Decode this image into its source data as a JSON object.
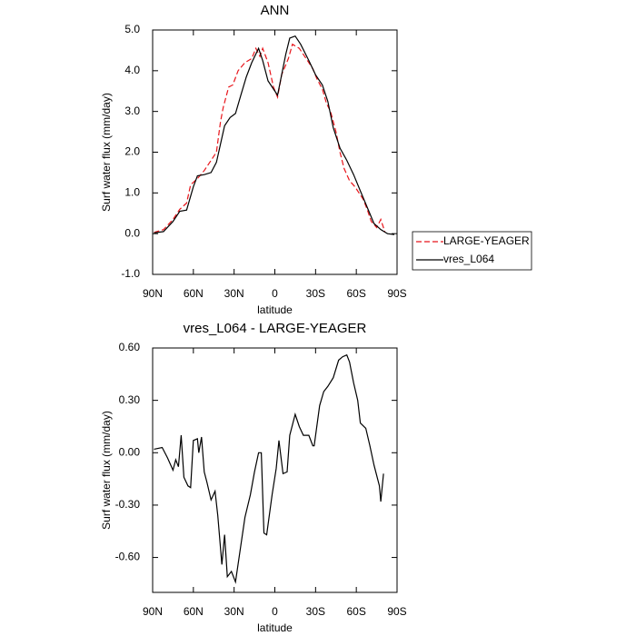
{
  "chart_data": [
    {
      "type": "line",
      "title": "ANN",
      "xlabel": "latitude",
      "ylabel": "Surf water flux (mm/day)",
      "xlim": [
        90,
        -90
      ],
      "xticks": [
        {
          "value": 90,
          "label": "90N"
        },
        {
          "value": 60,
          "label": "60N"
        },
        {
          "value": 30,
          "label": "30N"
        },
        0,
        {
          "value": -30,
          "label": "30S"
        },
        {
          "value": -60,
          "label": "60S"
        },
        {
          "value": -90,
          "label": "90S"
        }
      ],
      "ylim": [
        -1,
        5
      ],
      "yticks": [
        {
          "value": -1,
          "label": "-1.0"
        },
        {
          "value": 0,
          "label": "0.0"
        },
        {
          "value": 1,
          "label": "1.0"
        },
        {
          "value": 2,
          "label": "2.0"
        },
        {
          "value": 3,
          "label": "3.0"
        },
        {
          "value": 4,
          "label": "4.0"
        },
        {
          "value": 5,
          "label": "5.0"
        }
      ],
      "legend": "right",
      "series": [
        {
          "name": "LARGE-YEAGER",
          "color": "#e8151b",
          "linestyle": "dashed",
          "x": [
            89,
            82,
            75,
            70,
            65,
            62,
            57,
            52,
            47,
            43,
            40,
            38,
            34,
            31,
            27,
            22,
            17,
            14,
            11,
            9,
            5,
            1,
            -2,
            -5,
            -10,
            -13,
            -18,
            -23,
            -28,
            -31,
            -35,
            -38,
            -41,
            -45,
            -48,
            -51,
            -55,
            -59,
            -65,
            -68,
            -71,
            -75,
            -78,
            -81
          ],
          "values": [
            0.03,
            0.1,
            0.35,
            0.6,
            0.75,
            1.2,
            1.35,
            1.55,
            1.8,
            2.0,
            2.75,
            3.1,
            3.6,
            3.65,
            4.0,
            4.2,
            4.3,
            4.55,
            4.35,
            4.55,
            4.2,
            3.6,
            3.35,
            3.9,
            4.3,
            4.65,
            4.55,
            4.3,
            4.05,
            3.8,
            3.55,
            3.2,
            3.0,
            2.5,
            2.0,
            1.6,
            1.3,
            1.15,
            0.85,
            0.6,
            0.3,
            0.15,
            0.35,
            0.05
          ]
        },
        {
          "name": "vres_L064",
          "color": "#000000",
          "linestyle": "solid",
          "x": [
            89,
            82,
            75,
            70,
            65,
            60,
            57,
            52,
            47,
            43,
            40,
            37,
            33,
            29,
            25,
            21,
            17,
            12,
            9,
            5,
            1,
            -2,
            -5,
            -8,
            -11,
            -15,
            -19,
            -25,
            -30,
            -35,
            -39,
            -43,
            -48,
            -53,
            -58,
            -63,
            -68,
            -73,
            -78,
            -83,
            -88
          ],
          "values": [
            0.02,
            0.05,
            0.3,
            0.55,
            0.58,
            1.15,
            1.42,
            1.45,
            1.5,
            1.75,
            2.2,
            2.65,
            2.85,
            2.95,
            3.4,
            3.85,
            4.2,
            4.55,
            4.25,
            3.75,
            3.55,
            3.4,
            3.9,
            4.4,
            4.8,
            4.85,
            4.65,
            4.25,
            3.9,
            3.65,
            3.25,
            2.6,
            2.1,
            1.8,
            1.45,
            1.05,
            0.65,
            0.25,
            0.1,
            0.0,
            -0.02
          ]
        }
      ]
    },
    {
      "type": "line",
      "title": "vres_L064 - LARGE-YEAGER",
      "xlabel": "latitude",
      "ylabel": "Surf water flux (mm/day)",
      "xlim": [
        90,
        -90
      ],
      "xticks": [
        {
          "value": 90,
          "label": "90N"
        },
        {
          "value": 60,
          "label": "60N"
        },
        {
          "value": 30,
          "label": "30N"
        },
        0,
        {
          "value": -30,
          "label": "30S"
        },
        {
          "value": -60,
          "label": "60S"
        },
        {
          "value": -90,
          "label": "90S"
        }
      ],
      "ylim": [
        -0.8,
        0.6
      ],
      "yticks": [
        {
          "value": -0.6,
          "label": "-0.60"
        },
        {
          "value": -0.3,
          "label": "-0.30"
        },
        {
          "value": 0,
          "label": "0.00"
        },
        {
          "value": 0.3,
          "label": "0.30"
        },
        {
          "value": 0.6,
          "label": "0.60"
        }
      ],
      "series": [
        {
          "color": "#000000",
          "linestyle": "solid",
          "x": [
            89,
            83,
            79,
            75,
            73,
            71,
            69,
            67,
            64,
            62,
            60,
            57,
            56,
            54,
            52,
            50,
            47,
            44,
            42,
            39,
            37,
            35,
            32,
            29,
            25,
            22,
            18,
            15,
            12,
            10,
            8,
            6,
            2,
            -1,
            -3,
            -6,
            -9,
            -11,
            -15,
            -18,
            -21,
            -25,
            -28,
            -29,
            -33,
            -36,
            -39,
            -43,
            -47,
            -50,
            -53,
            -55,
            -58,
            -61,
            -63,
            -67,
            -70,
            -73,
            -77,
            -78,
            -80
          ],
          "values": [
            0.02,
            0.03,
            -0.03,
            -0.1,
            -0.04,
            -0.08,
            0.1,
            -0.14,
            -0.19,
            -0.2,
            0.07,
            0.08,
            0,
            0.09,
            -0.11,
            -0.17,
            -0.27,
            -0.22,
            -0.36,
            -0.64,
            -0.47,
            -0.71,
            -0.68,
            -0.74,
            -0.53,
            -0.37,
            -0.24,
            -0.11,
            0,
            0,
            -0.46,
            -0.47,
            -0.24,
            -0.09,
            0.07,
            -0.12,
            -0.11,
            0.1,
            0.22,
            0.15,
            0.1,
            0.1,
            0.04,
            0.04,
            0.27,
            0.35,
            0.38,
            0.43,
            0.53,
            0.55,
            0.56,
            0.52,
            0.4,
            0.3,
            0.17,
            0.14,
            0.04,
            -0.07,
            -0.19,
            -0.28,
            -0.12
          ]
        }
      ]
    }
  ]
}
